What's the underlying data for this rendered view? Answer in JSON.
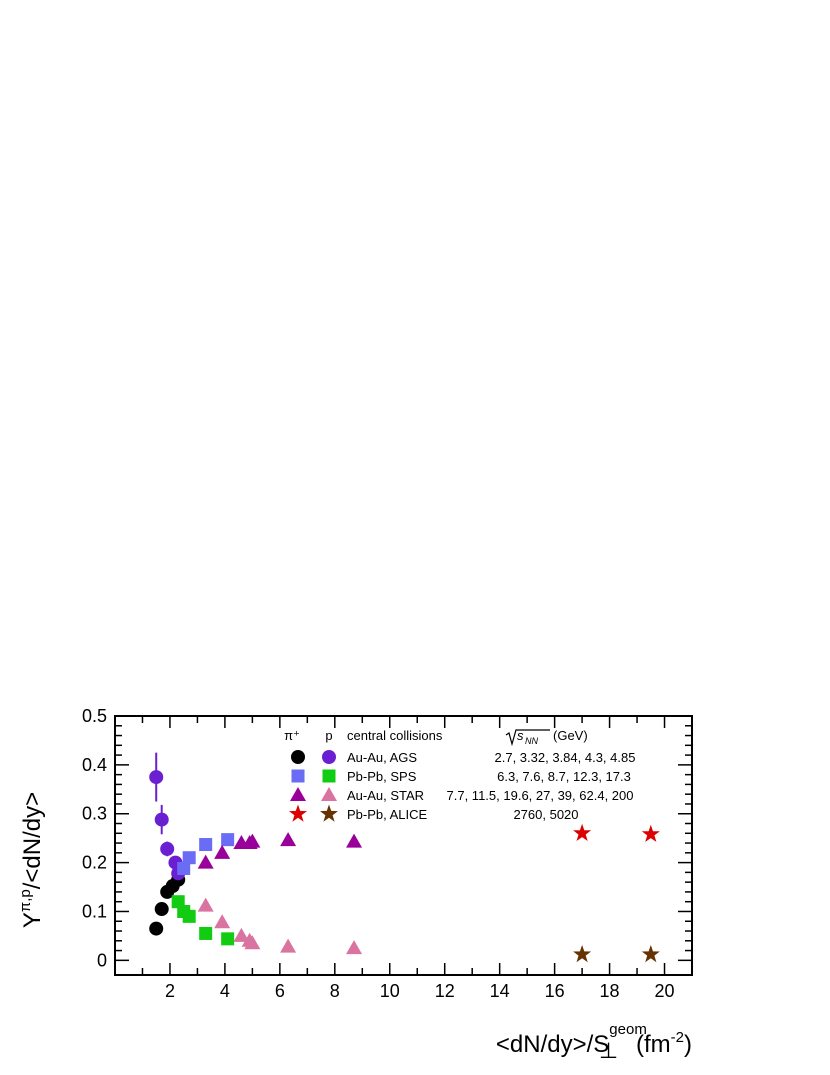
{
  "chart_data": {
    "type": "scatter",
    "xlabel": "<dN/dy>/S",
    "xlabel_sup": "geom",
    "xlabel_sub": "⊥",
    "xlabel_unit": "(fm",
    "xlabel_unit_sup": "-2",
    "xlabel_unit_close": ")",
    "ylabel": "Y",
    "ylabel_sup": "π,p",
    "ylabel_tail": "/<dN/dy>",
    "xlim": [
      0,
      21
    ],
    "ylim": [
      -0.03,
      0.5
    ],
    "x_ticks": [
      "2",
      "4",
      "6",
      "8",
      "10",
      "12",
      "14",
      "16",
      "18",
      "20"
    ],
    "y_ticks": [
      "0",
      "0.1",
      "0.2",
      "0.3",
      "0.4",
      "0.5"
    ],
    "x_tick_values": [
      2,
      4,
      6,
      8,
      10,
      12,
      14,
      16,
      18,
      20
    ],
    "y_tick_values": [
      0,
      0.1,
      0.2,
      0.3,
      0.4,
      0.5
    ],
    "legend": {
      "col_pi": "π⁺",
      "col_p": "p",
      "col_system": "central collisions",
      "col_energy_sqrt": "√s",
      "col_energy_sub": "NN",
      "col_energy_unit": "(GeV)",
      "rows": [
        {
          "system": "Au-Au, AGS",
          "energies": "2.7, 3.32, 3.84, 4.3, 4.85",
          "marker": "circle",
          "pi_color": "#000000",
          "p_color": "#6a1fd1"
        },
        {
          "system": "Pb-Pb, SPS",
          "energies": "6.3, 7.6, 8.7, 12.3, 17.3",
          "marker": "square",
          "pi_color": "#6a6cf5",
          "p_color": "#11cc11"
        },
        {
          "system": "Au-Au, STAR",
          "energies": "7.7, 11.5, 19.6, 27, 39, 62.4,  200",
          "marker": "triangle",
          "pi_color": "#990099",
          "p_color": "#d9739f"
        },
        {
          "system": "Pb-Pb, ALICE",
          "energies": "2760, 5020",
          "marker": "star",
          "pi_color": "#dd0000",
          "p_color": "#663300"
        }
      ]
    },
    "series": [
      {
        "marker": "circle",
        "color": "#000000",
        "points": [
          [
            1.5,
            0.065,
            0
          ],
          [
            1.7,
            0.105,
            0.012
          ],
          [
            1.9,
            0.14,
            0.012
          ],
          [
            2.1,
            0.152,
            0.012
          ],
          [
            2.3,
            0.165,
            0.012
          ]
        ]
      },
      {
        "marker": "circle",
        "color": "#6a1fd1",
        "points": [
          [
            1.5,
            0.375,
            0.05
          ],
          [
            1.7,
            0.288,
            0.03
          ],
          [
            1.9,
            0.228,
            0.015
          ],
          [
            2.2,
            0.2,
            0.01
          ],
          [
            2.3,
            0.178,
            0.01
          ]
        ]
      },
      {
        "marker": "square",
        "color": "#6a6cf5",
        "points": [
          [
            2.5,
            0.188,
            0
          ],
          [
            2.7,
            0.21,
            0.008
          ],
          [
            3.3,
            0.237,
            0.008
          ],
          [
            4.1,
            0.247,
            0.01
          ]
        ]
      },
      {
        "marker": "square",
        "color": "#11cc11",
        "points": [
          [
            2.3,
            0.12,
            0
          ],
          [
            2.5,
            0.1,
            0
          ],
          [
            2.7,
            0.09,
            0
          ],
          [
            3.3,
            0.055,
            0
          ],
          [
            4.1,
            0.044,
            0
          ]
        ]
      },
      {
        "marker": "triangle",
        "color": "#990099",
        "points": [
          [
            3.3,
            0.2,
            0
          ],
          [
            3.9,
            0.22,
            0
          ],
          [
            4.6,
            0.24,
            0
          ],
          [
            4.9,
            0.24,
            0
          ],
          [
            5.0,
            0.243,
            0
          ],
          [
            6.3,
            0.246,
            0
          ],
          [
            8.7,
            0.243,
            0
          ]
        ]
      },
      {
        "marker": "triangle",
        "color": "#d9739f",
        "points": [
          [
            3.3,
            0.112,
            0
          ],
          [
            3.9,
            0.078,
            0
          ],
          [
            4.6,
            0.05,
            0
          ],
          [
            4.9,
            0.04,
            0
          ],
          [
            5.0,
            0.035,
            0
          ],
          [
            6.3,
            0.028,
            0
          ],
          [
            8.7,
            0.025,
            0
          ]
        ]
      },
      {
        "marker": "star",
        "color": "#dd0000",
        "points": [
          [
            17.0,
            0.26,
            0
          ],
          [
            19.5,
            0.258,
            0
          ]
        ]
      },
      {
        "marker": "star",
        "color": "#663300",
        "points": [
          [
            17.0,
            0.012,
            0
          ],
          [
            19.5,
            0.012,
            0
          ]
        ]
      }
    ]
  }
}
